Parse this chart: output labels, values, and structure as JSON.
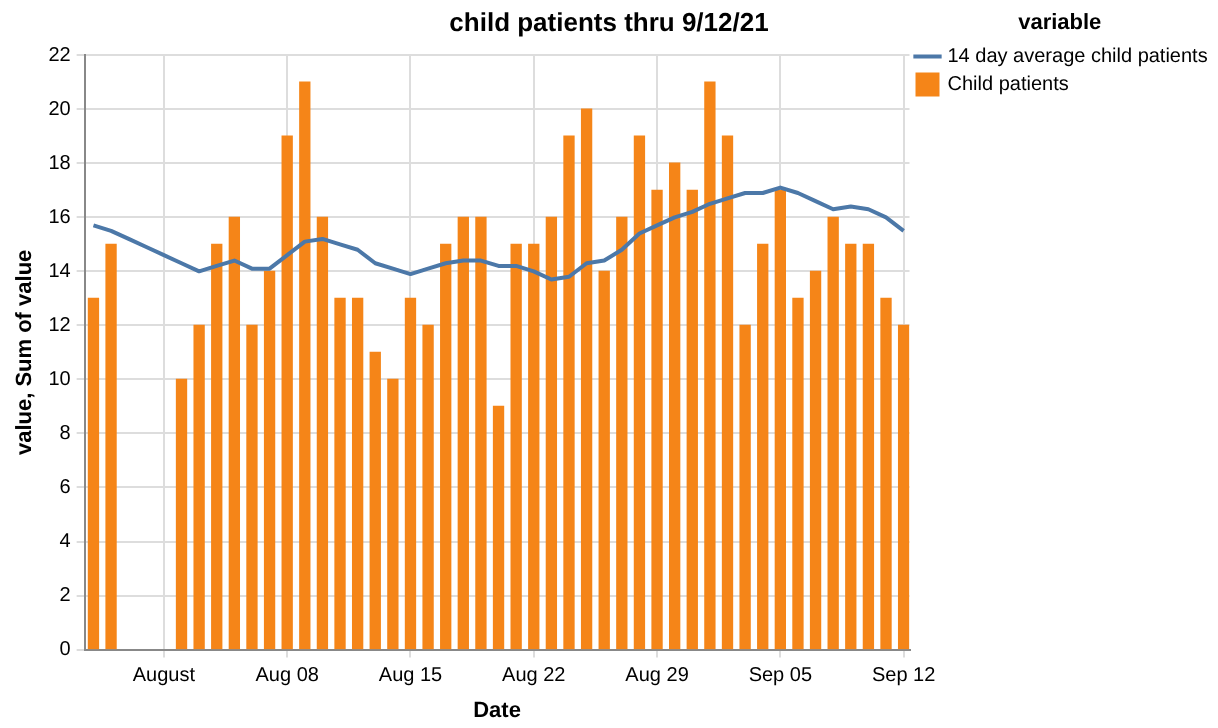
{
  "chart_data": {
    "type": "bar",
    "title": "child patients thru 9/12/21",
    "xlabel": "Date",
    "ylabel": "value, Sum of value",
    "legend_title": "variable",
    "x": [
      "--07-28",
      "--07-29",
      "--07-30",
      "--07-31",
      "--08-01",
      "--08-02",
      "--08-03",
      "--08-04",
      "--08-05",
      "--08-06",
      "--08-07",
      "--08-08",
      "--08-09",
      "--08-10",
      "--08-11",
      "--08-12",
      "--08-13",
      "--08-14",
      "--08-15",
      "--08-16",
      "--08-17",
      "--08-18",
      "--08-19",
      "--08-20",
      "--08-21",
      "--08-22",
      "--08-23",
      "--08-24",
      "--08-25",
      "--08-26",
      "--08-27",
      "--08-28",
      "--08-29",
      "--08-30",
      "--08-31",
      "--09-01",
      "--09-02",
      "--09-03",
      "--09-04",
      "--09-05",
      "--09-06",
      "--09-07",
      "--09-08",
      "--09-09",
      "--09-10",
      "--09-11",
      "--09-12"
    ],
    "series": [
      {
        "name": "14 day average child patients",
        "type": "line",
        "color": "#4c78a8",
        "values": [
          15.7,
          15.5,
          15.2,
          14.9,
          14.6,
          14.3,
          14.0,
          14.2,
          14.4,
          14.1,
          14.1,
          14.6,
          15.1,
          15.2,
          15.0,
          14.8,
          14.3,
          14.1,
          13.9,
          14.1,
          14.3,
          14.4,
          14.4,
          14.2,
          14.2,
          14.0,
          13.7,
          13.8,
          14.3,
          14.4,
          14.8,
          15.4,
          15.7,
          16.0,
          16.2,
          16.5,
          16.7,
          16.9,
          16.9,
          17.1,
          16.9,
          16.6,
          16.3,
          16.4,
          16.3,
          16.0,
          15.5
        ]
      },
      {
        "name": "Child patients",
        "color": "#f58518",
        "values": [
          13,
          15,
          null,
          null,
          null,
          10,
          12,
          15,
          16,
          12,
          14,
          19,
          21,
          16,
          13,
          13,
          11,
          10,
          13,
          12,
          15,
          16,
          16,
          9,
          15,
          15,
          16,
          19,
          20,
          14,
          16,
          19,
          17,
          18,
          17,
          21,
          19,
          12,
          15,
          17,
          13,
          14,
          16,
          15,
          15,
          13,
          12
        ]
      }
    ],
    "xlim": [
      "--07-27T12:00",
      "--09-12T08:00"
    ],
    "xticks": [
      {
        "value": "--08-01",
        "label": "August"
      },
      {
        "value": "--08-08",
        "label": "Aug 08"
      },
      {
        "value": "--08-15",
        "label": "Aug 15"
      },
      {
        "value": "--08-22",
        "label": "Aug 22"
      },
      {
        "value": "--08-29",
        "label": "Aug 29"
      },
      {
        "value": "--09-05",
        "label": "Sep 05"
      },
      {
        "value": "--09-12",
        "label": "Sep 12"
      }
    ],
    "ylim": [
      0,
      22
    ],
    "yticks": [
      0,
      2,
      4,
      6,
      8,
      10,
      12,
      14,
      16,
      18,
      20,
      22
    ],
    "grid": true,
    "legend": "top right",
    "marker": "none",
    "line_style": "solid"
  }
}
